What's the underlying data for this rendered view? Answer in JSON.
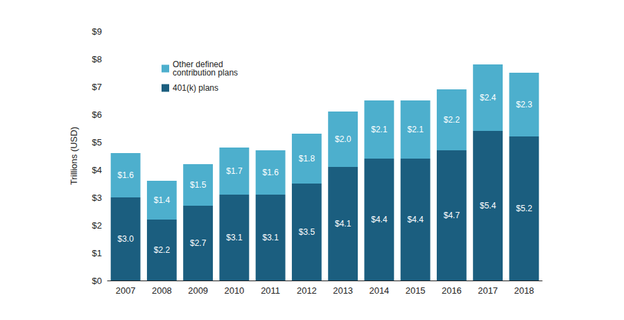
{
  "chart_data": {
    "type": "bar",
    "stacked": true,
    "data_labels": true,
    "grid": false,
    "legend": "upper left",
    "y_label": "Trillions (USD)",
    "categories": [
      "2007",
      "2008",
      "2009",
      "2010",
      "2011",
      "2012",
      "2013",
      "2014",
      "2015",
      "2016",
      "2017",
      "2018"
    ],
    "series": [
      {
        "name": "401(k) plans",
        "color": "#1b5e7f",
        "values": [
          3.0,
          2.2,
          2.7,
          3.1,
          3.1,
          3.5,
          4.1,
          4.4,
          4.4,
          4.7,
          5.4,
          5.2
        ],
        "value_labels": [
          "$3.0",
          "$2.2",
          "$2.7",
          "$3.1",
          "$3.1",
          "$3.5",
          "$4.1",
          "$4.4",
          "$4.4",
          "$4.7",
          "$5.4",
          "$5.2"
        ]
      },
      {
        "name": "Other defined contribution plans",
        "color": "#4dafcd",
        "values": [
          1.6,
          1.4,
          1.5,
          1.7,
          1.6,
          1.8,
          2.0,
          2.1,
          2.1,
          2.2,
          2.4,
          2.3
        ],
        "value_labels": [
          "$1.6",
          "$1.4",
          "$1.5",
          "$1.7",
          "$1.6",
          "$1.8",
          "$2.0",
          "$2.1",
          "$2.1",
          "$2.2",
          "$2.4",
          "$2.3"
        ]
      }
    ],
    "ylim": [
      0,
      9
    ],
    "yticks": [
      {
        "value": 0,
        "label": "$0"
      },
      {
        "value": 1,
        "label": "$1"
      },
      {
        "value": 2,
        "label": "$2"
      },
      {
        "value": 3,
        "label": "$3"
      },
      {
        "value": 4,
        "label": "$4"
      },
      {
        "value": 5,
        "label": "$5"
      },
      {
        "value": 6,
        "label": "$6"
      },
      {
        "value": 7,
        "label": "$7"
      },
      {
        "value": 8,
        "label": "$8"
      },
      {
        "value": 9,
        "label": "$9"
      }
    ]
  }
}
